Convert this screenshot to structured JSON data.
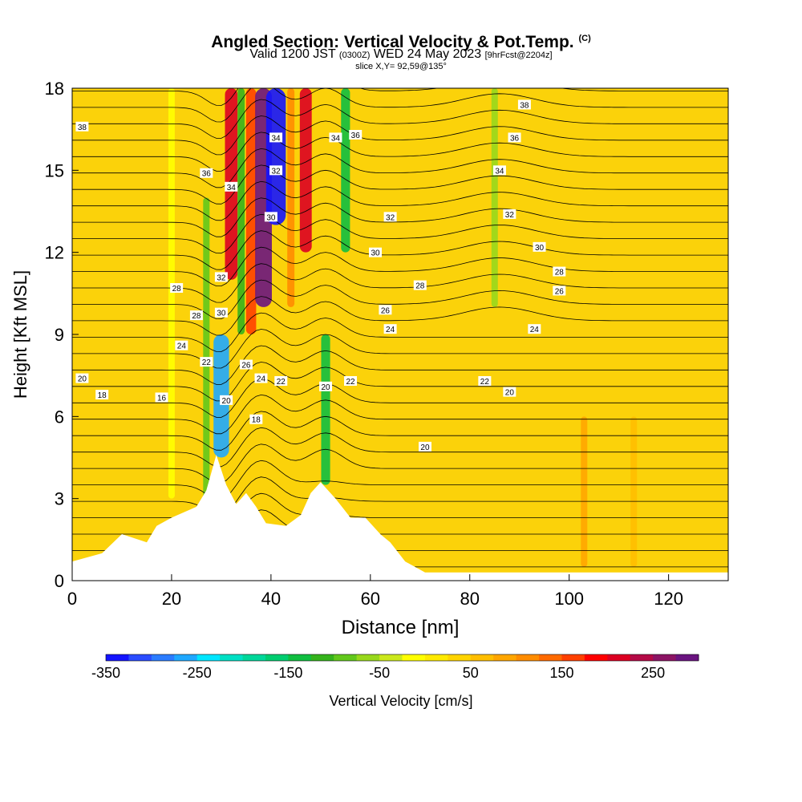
{
  "title": {
    "main": "Angled Section: Vertical Velocity & Pot.Temp.",
    "units": "(C)"
  },
  "subtitle": {
    "valid": "Valid 1200 JST",
    "utc": "(0300Z)",
    "date": "WED 24 May 2023",
    "forecast": "[9hrFcst@2204z]"
  },
  "slice": "slice X,Y= 92,59@135°",
  "chart_data": {
    "type": "heatmap",
    "xlabel": "Distance [nm]",
    "ylabel": "Height [Kft MSL]",
    "xlim": [
      0,
      132
    ],
    "ylim": [
      0,
      18
    ],
    "xticks": [
      0,
      20,
      40,
      60,
      80,
      100,
      120
    ],
    "yticks": [
      0,
      3,
      6,
      9,
      12,
      15,
      18
    ],
    "colorbar": {
      "label": "Vertical Velocity [cm/s]",
      "min": -350,
      "max": 300,
      "ticks": [
        -350,
        -250,
        -150,
        -50,
        50,
        150,
        250
      ],
      "colors": [
        "#1414ff",
        "#2a4cff",
        "#2b7cff",
        "#1fa8ff",
        "#00e6ff",
        "#00e0c4",
        "#00d79a",
        "#00cd70",
        "#10be40",
        "#35b31c",
        "#62c81c",
        "#98d81c",
        "#cbe81c",
        "#ffff00",
        "#ffea00",
        "#ffd400",
        "#ffbe00",
        "#ffa600",
        "#ff8c00",
        "#ff6a00",
        "#ff4000",
        "#ff0000",
        "#dc0022",
        "#b40a46",
        "#8c1464",
        "#6a1480"
      ]
    },
    "velocity_cells": [
      {
        "x": 20,
        "ymin": 3,
        "ymax": 18,
        "w": -20
      },
      {
        "x": 27,
        "ymin": 3,
        "ymax": 14,
        "w": -80
      },
      {
        "x": 30,
        "ymin": 4.5,
        "ymax": 9,
        "w": -260
      },
      {
        "x": 32,
        "ymin": 11,
        "ymax": 18,
        "w": 210
      },
      {
        "x": 34,
        "ymin": 9,
        "ymax": 18,
        "w": -120
      },
      {
        "x": 36,
        "ymin": 9,
        "ymax": 18,
        "w": 170
      },
      {
        "x": 38.5,
        "ymin": 10,
        "ymax": 18,
        "w": 280
      },
      {
        "x": 41,
        "ymin": 13,
        "ymax": 18,
        "w": -330
      },
      {
        "x": 44,
        "ymin": 10,
        "ymax": 18,
        "w": 120
      },
      {
        "x": 47,
        "ymin": 12,
        "ymax": 18,
        "w": 200
      },
      {
        "x": 51,
        "ymin": 3.5,
        "ymax": 9,
        "w": -150
      },
      {
        "x": 55,
        "ymin": 12,
        "ymax": 18,
        "w": -150
      },
      {
        "x": 85,
        "ymin": 10,
        "ymax": 18,
        "w": -60
      },
      {
        "x": 103,
        "ymin": 0.5,
        "ymax": 6,
        "w": 80
      },
      {
        "x": 113,
        "ymin": 0.5,
        "ymax": 6,
        "w": 60
      }
    ],
    "terrain": [
      [
        0,
        0.7
      ],
      [
        6,
        1
      ],
      [
        10,
        1.7
      ],
      [
        15,
        1.4
      ],
      [
        17,
        2
      ],
      [
        20,
        2.3
      ],
      [
        25,
        2.7
      ],
      [
        27,
        3.3
      ],
      [
        29,
        4.6
      ],
      [
        31,
        3.5
      ],
      [
        33,
        2.8
      ],
      [
        35,
        3.2
      ],
      [
        37,
        2.7
      ],
      [
        39,
        2.1
      ],
      [
        43,
        2
      ],
      [
        46,
        2.4
      ],
      [
        48,
        3.2
      ],
      [
        50,
        3.6
      ],
      [
        53,
        3
      ],
      [
        56,
        2.3
      ],
      [
        59,
        2.3
      ],
      [
        62,
        1.7
      ],
      [
        64,
        1.4
      ],
      [
        67,
        0.7
      ],
      [
        71,
        0.3
      ],
      [
        132,
        0.3
      ]
    ],
    "pot_temp_labels": [
      {
        "text": "38",
        "x": 2,
        "y": 16.6
      },
      {
        "text": "36",
        "x": 27,
        "y": 14.9
      },
      {
        "text": "34",
        "x": 32,
        "y": 14.4
      },
      {
        "text": "34",
        "x": 41,
        "y": 16.2
      },
      {
        "text": "32",
        "x": 41,
        "y": 15
      },
      {
        "text": "30",
        "x": 40,
        "y": 13.3
      },
      {
        "text": "34",
        "x": 53,
        "y": 16.2
      },
      {
        "text": "36",
        "x": 57,
        "y": 16.3
      },
      {
        "text": "32",
        "x": 64,
        "y": 13.3
      },
      {
        "text": "30",
        "x": 61,
        "y": 12
      },
      {
        "text": "28",
        "x": 70,
        "y": 10.8
      },
      {
        "text": "26",
        "x": 63,
        "y": 9.9
      },
      {
        "text": "24",
        "x": 64,
        "y": 9.2
      },
      {
        "text": "38",
        "x": 91,
        "y": 17.4
      },
      {
        "text": "36",
        "x": 89,
        "y": 16.2
      },
      {
        "text": "34",
        "x": 86,
        "y": 15
      },
      {
        "text": "32",
        "x": 88,
        "y": 13.4
      },
      {
        "text": "30",
        "x": 94,
        "y": 12.2
      },
      {
        "text": "28",
        "x": 98,
        "y": 11.3
      },
      {
        "text": "26",
        "x": 98,
        "y": 10.6
      },
      {
        "text": "24",
        "x": 93,
        "y": 9.2
      },
      {
        "text": "22",
        "x": 83,
        "y": 7.3
      },
      {
        "text": "20",
        "x": 88,
        "y": 6.9
      },
      {
        "text": "20",
        "x": 71,
        "y": 4.9
      },
      {
        "text": "32",
        "x": 30,
        "y": 11.1
      },
      {
        "text": "28",
        "x": 21,
        "y": 10.7
      },
      {
        "text": "28",
        "x": 25,
        "y": 9.7
      },
      {
        "text": "30",
        "x": 30,
        "y": 9.8
      },
      {
        "text": "24",
        "x": 22,
        "y": 8.6
      },
      {
        "text": "22",
        "x": 27,
        "y": 8
      },
      {
        "text": "26",
        "x": 35,
        "y": 7.9
      },
      {
        "text": "24",
        "x": 38,
        "y": 7.4
      },
      {
        "text": "22",
        "x": 42,
        "y": 7.3
      },
      {
        "text": "20",
        "x": 51,
        "y": 7.1
      },
      {
        "text": "22",
        "x": 56,
        "y": 7.3
      },
      {
        "text": "20",
        "x": 2,
        "y": 7.4
      },
      {
        "text": "18",
        "x": 6,
        "y": 6.8
      },
      {
        "text": "16",
        "x": 18,
        "y": 6.7
      },
      {
        "text": "20",
        "x": 31,
        "y": 6.6
      },
      {
        "text": "18",
        "x": 37,
        "y": 5.9
      }
    ]
  }
}
